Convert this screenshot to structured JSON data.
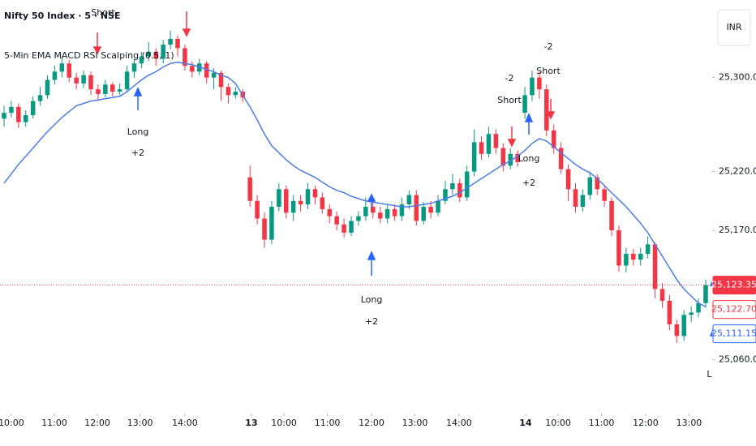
{
  "chart_data": {
    "type": "candlestick",
    "title": "Nifty 50 Index · 5 · NSE",
    "subtitle": "5-Min EMA MACD RSI Scalping (0.5, 1)",
    "currency": "INR",
    "up_color": "#089981",
    "down_color": "#f23645",
    "ema_color": "#4c7ce8",
    "xlim": [
      -0.56,
      97.9
    ],
    "xticks": [
      {
        "value": 1.0,
        "label": "10:00"
      },
      {
        "value": 6.95,
        "label": "11:00"
      },
      {
        "value": 12.9,
        "label": "12:00"
      },
      {
        "value": 18.8,
        "label": "13:00"
      },
      {
        "value": 25.0,
        "label": "14:00"
      },
      {
        "value": 34.2,
        "label": "13"
      },
      {
        "value": 38.7,
        "label": "10:00"
      },
      {
        "value": 44.7,
        "label": "11:00"
      },
      {
        "value": 50.8,
        "label": "12:00"
      },
      {
        "value": 56.8,
        "label": "13:00"
      },
      {
        "value": 62.9,
        "label": "14:00"
      },
      {
        "value": 72.1,
        "label": "14"
      },
      {
        "value": 76.6,
        "label": "10:00"
      },
      {
        "value": 82.6,
        "label": "11:00"
      },
      {
        "value": 88.7,
        "label": "12:00"
      },
      {
        "value": 94.7,
        "label": "13:00"
      }
    ],
    "ylim": [
      25014,
      25366
    ],
    "yticks": [
      {
        "value": 25300,
        "label": "25,300.00"
      },
      {
        "value": 25220,
        "label": "25,220.00"
      },
      {
        "value": 25170,
        "label": "25,170.00"
      },
      {
        "value": 25060,
        "label": "25,060.00"
      }
    ],
    "price_labels": [
      {
        "value": 25123.35,
        "label": "25,123.35",
        "color": "#f23645",
        "filled": true
      },
      {
        "value": 25122.7,
        "label": "25,122.70",
        "color": "#f23645",
        "filled": false
      },
      {
        "value": 25111.15,
        "label": "25,111.15",
        "color": "#2962ff",
        "filled": false
      }
    ],
    "candles": [
      [
        25265,
        25276,
        25258,
        25270
      ],
      [
        25270,
        25280,
        25266,
        25275
      ],
      [
        25275,
        25278,
        25257,
        25262
      ],
      [
        25262,
        25272,
        25258,
        25268
      ],
      [
        25268,
        25284,
        25265,
        25280
      ],
      [
        25280,
        25292,
        25276,
        25285
      ],
      [
        25285,
        25302,
        25282,
        25298
      ],
      [
        25298,
        25310,
        25294,
        25305
      ],
      [
        25305,
        25318,
        25300,
        25312
      ],
      [
        25312,
        25315,
        25296,
        25300
      ],
      [
        25300,
        25304,
        25290,
        25295
      ],
      [
        25295,
        25306,
        25291,
        25302
      ],
      [
        25302,
        25305,
        25285,
        25290
      ],
      [
        25290,
        25294,
        25280,
        25286
      ],
      [
        25286,
        25298,
        25283,
        25294
      ],
      [
        25294,
        25296,
        25284,
        25288
      ],
      [
        25288,
        25295,
        25285,
        25290
      ],
      [
        25290,
        25310,
        25288,
        25305
      ],
      [
        25305,
        25316,
        25300,
        25312
      ],
      [
        25312,
        25322,
        25308,
        25318
      ],
      [
        25318,
        25330,
        25314,
        25322
      ],
      [
        25322,
        25325,
        25310,
        25316
      ],
      [
        25316,
        25332,
        25312,
        25328
      ],
      [
        25328,
        25340,
        25324,
        25333
      ],
      [
        25333,
        25336,
        25318,
        25325
      ],
      [
        25325,
        25328,
        25306,
        25310
      ],
      [
        25310,
        25314,
        25300,
        25305
      ],
      [
        25305,
        25316,
        25302,
        25312
      ],
      [
        25312,
        25314,
        25295,
        25300
      ],
      [
        25300,
        25308,
        25290,
        25304
      ],
      [
        25304,
        25306,
        25280,
        25292
      ],
      [
        25292,
        25295,
        25278,
        25285
      ],
      [
        25285,
        25292,
        25282,
        25288
      ],
      [
        25288,
        25290,
        25279,
        25283
      ],
      [
        25215,
        25225,
        25190,
        25195
      ],
      [
        25195,
        25200,
        25175,
        25180
      ],
      [
        25180,
        25185,
        25155,
        25162
      ],
      [
        25162,
        25195,
        25158,
        25190
      ],
      [
        25190,
        25210,
        25186,
        25205
      ],
      [
        25205,
        25208,
        25180,
        25185
      ],
      [
        25185,
        25200,
        25178,
        25195
      ],
      [
        25195,
        25200,
        25186,
        25192
      ],
      [
        25192,
        25210,
        25188,
        25205
      ],
      [
        25205,
        25208,
        25192,
        25198
      ],
      [
        25198,
        25202,
        25184,
        25188
      ],
      [
        25188,
        25192,
        25176,
        25182
      ],
      [
        25182,
        25186,
        25170,
        25175
      ],
      [
        25175,
        25180,
        25164,
        25168
      ],
      [
        25168,
        25182,
        25165,
        25178
      ],
      [
        25178,
        25186,
        25174,
        25182
      ],
      [
        25182,
        25198,
        25178,
        25190
      ],
      [
        25190,
        25194,
        25180,
        25185
      ],
      [
        25185,
        25190,
        25176,
        25180
      ],
      [
        25180,
        25192,
        25176,
        25188
      ],
      [
        25188,
        25192,
        25178,
        25182
      ],
      [
        25182,
        25198,
        25178,
        25192
      ],
      [
        25192,
        25204,
        25188,
        25200
      ],
      [
        25200,
        25204,
        25174,
        25178
      ],
      [
        25178,
        25194,
        25175,
        25190
      ],
      [
        25190,
        25195,
        25180,
        25185
      ],
      [
        25185,
        25200,
        25182,
        25195
      ],
      [
        25195,
        25212,
        25192,
        25205
      ],
      [
        25205,
        25218,
        25200,
        25210
      ],
      [
        25210,
        25214,
        25194,
        25198
      ],
      [
        25198,
        25225,
        25195,
        25220
      ],
      [
        25220,
        25256,
        25216,
        25245
      ],
      [
        25245,
        25250,
        25230,
        25235
      ],
      [
        25235,
        25258,
        25232,
        25252
      ],
      [
        25252,
        25256,
        25235,
        25240
      ],
      [
        25240,
        25244,
        25220,
        25225
      ],
      [
        25225,
        25240,
        25222,
        25235
      ],
      [
        25235,
        25238,
        25224,
        25228
      ],
      [
        25270,
        25292,
        25265,
        25285
      ],
      [
        25285,
        25306,
        25280,
        25300
      ],
      [
        25300,
        25305,
        25282,
        25290
      ],
      [
        25290,
        25294,
        25250,
        25255
      ],
      [
        25255,
        25260,
        25235,
        25240
      ],
      [
        25240,
        25245,
        25218,
        25222
      ],
      [
        25222,
        25226,
        25195,
        25205
      ],
      [
        25205,
        25210,
        25185,
        25190
      ],
      [
        25190,
        25205,
        25186,
        25200
      ],
      [
        25200,
        25220,
        25196,
        25215
      ],
      [
        25215,
        25218,
        25200,
        25205
      ],
      [
        25205,
        25208,
        25190,
        25195
      ],
      [
        25195,
        25198,
        25165,
        25170
      ],
      [
        25170,
        25174,
        25135,
        25140
      ],
      [
        25140,
        25155,
        25134,
        25150
      ],
      [
        25150,
        25154,
        25140,
        25145
      ],
      [
        25145,
        25155,
        25140,
        25150
      ],
      [
        25150,
        25165,
        25146,
        25158
      ],
      [
        25158,
        25160,
        25112,
        25120
      ],
      [
        25120,
        25125,
        25104,
        25110
      ],
      [
        25110,
        25115,
        25085,
        25090
      ],
      [
        25090,
        25094,
        25074,
        25080
      ],
      [
        25080,
        25102,
        25076,
        25098
      ],
      [
        25098,
        25105,
        25092,
        25100
      ],
      [
        25100,
        25112,
        25096,
        25108
      ],
      [
        25108,
        25128,
        25104,
        25123.35
      ]
    ],
    "ema": [
      25210,
      25218,
      25226,
      25233,
      25240,
      25247,
      25254,
      25260,
      25266,
      25271,
      25276,
      25278,
      25280,
      25281,
      25282,
      25283,
      25284,
      25288,
      25293,
      25298,
      25302,
      25305,
      25309,
      25312,
      25313,
      25312,
      25311,
      25309,
      25307,
      25305,
      25302,
      25300,
      25295,
      25285,
      25275,
      25264,
      25252,
      25242,
      25236,
      25230,
      25225,
      25221,
      25218,
      25215,
      25211,
      25207,
      25204,
      25202,
      25199,
      25197,
      25195,
      25194,
      25193,
      25192,
      25191,
      25190,
      25190,
      25191,
      25192,
      25193,
      25195,
      25197,
      25199,
      25202,
      25206,
      25210,
      25214,
      25218,
      25222,
      25226,
      25229,
      25233,
      25238,
      25244,
      25248,
      25246,
      25241,
      25236,
      25231,
      25226,
      25222,
      25219,
      25214,
      25208,
      25202,
      25196,
      25190,
      25183,
      25176,
      25168,
      25158,
      25148,
      25138,
      25128,
      25120,
      25114,
      25108,
      25105
    ],
    "annotations": [
      "Short",
      "Long",
      "+2",
      "-2",
      "Short",
      "-2",
      "Short",
      "Long",
      "+2",
      "Long",
      "+2",
      "Lor"
    ]
  }
}
